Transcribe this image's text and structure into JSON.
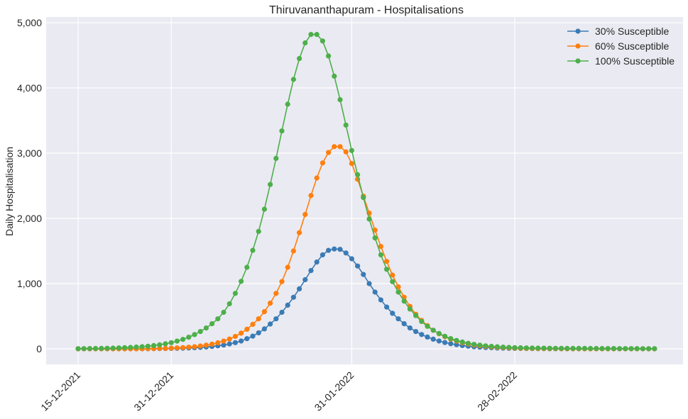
{
  "chart_data": {
    "type": "line",
    "title": "Thiruvananthapuram - Hospitalisations",
    "xlabel": "",
    "ylabel": "Daily Hospitalisation",
    "x_start": "15-12-2021",
    "x_end": "24-03-2022",
    "x_step_days": 1,
    "xticks": [
      "15-12-2021",
      "31-12-2021",
      "31-01-2022",
      "28-02-2022"
    ],
    "ylim": [
      -250,
      5000
    ],
    "yticks": [
      "0",
      "1,000",
      "2,000",
      "3,000",
      "4,000",
      "5,000"
    ],
    "ytick_values": [
      0,
      1000,
      2000,
      3000,
      4000,
      5000
    ],
    "grid": true,
    "legend_position": "top-right",
    "series": [
      {
        "name": "30% Susceptible",
        "color": "#3a7bb5",
        "values": [
          0,
          0,
          0,
          0,
          0,
          0,
          0,
          0,
          0,
          0,
          0,
          0,
          1,
          2,
          3,
          4,
          6,
          8,
          10,
          13,
          17,
          22,
          28,
          36,
          46,
          58,
          75,
          95,
          120,
          155,
          195,
          245,
          305,
          380,
          460,
          560,
          670,
          790,
          920,
          1060,
          1200,
          1330,
          1440,
          1510,
          1530,
          1525,
          1470,
          1380,
          1270,
          1140,
          1000,
          870,
          750,
          640,
          545,
          460,
          385,
          320,
          265,
          220,
          180,
          148,
          120,
          97,
          78,
          63,
          50,
          40,
          32,
          25,
          20,
          16,
          12,
          10,
          8,
          6,
          5,
          4,
          3,
          2,
          2,
          1,
          1,
          1,
          1,
          0,
          0,
          0,
          0,
          0,
          0,
          0,
          0,
          0,
          0,
          0,
          0,
          0,
          0,
          0
        ]
      },
      {
        "name": "60% Susceptible",
        "color": "#ff7f0e",
        "values": [
          0,
          0,
          0,
          0,
          0,
          0,
          0,
          0,
          0,
          0,
          0,
          0,
          2,
          3,
          5,
          7,
          10,
          14,
          19,
          25,
          33,
          43,
          56,
          72,
          92,
          118,
          150,
          190,
          240,
          300,
          375,
          460,
          570,
          700,
          850,
          1030,
          1250,
          1500,
          1780,
          2060,
          2350,
          2620,
          2850,
          3010,
          3100,
          3100,
          3020,
          2840,
          2600,
          2340,
          2080,
          1820,
          1570,
          1340,
          1130,
          950,
          790,
          650,
          530,
          435,
          355,
          285,
          230,
          185,
          148,
          118,
          94,
          75,
          59,
          47,
          37,
          29,
          23,
          18,
          14,
          11,
          9,
          7,
          5,
          4,
          3,
          3,
          2,
          2,
          1,
          1,
          1,
          1,
          0,
          0,
          0,
          0,
          0,
          0,
          0,
          0,
          0,
          0,
          0,
          0
        ]
      },
      {
        "name": "100% Susceptible",
        "color": "#4daf4a",
        "values": [
          2,
          3,
          4,
          5,
          7,
          9,
          11,
          14,
          18,
          22,
          27,
          33,
          40,
          50,
          62,
          77,
          95,
          118,
          145,
          178,
          218,
          265,
          320,
          385,
          460,
          560,
          690,
          850,
          1035,
          1250,
          1510,
          1800,
          2140,
          2520,
          2920,
          3340,
          3750,
          4130,
          4450,
          4690,
          4820,
          4820,
          4720,
          4490,
          4180,
          3820,
          3430,
          3040,
          2670,
          2320,
          1990,
          1700,
          1440,
          1220,
          1030,
          870,
          730,
          610,
          510,
          420,
          345,
          285,
          235,
          192,
          157,
          128,
          104,
          85,
          69,
          56,
          46,
          38,
          31,
          26,
          22,
          19,
          16,
          14,
          12,
          11,
          10,
          9,
          8,
          8,
          7,
          7,
          6,
          6,
          5,
          5,
          4,
          4,
          4,
          3,
          3,
          3,
          3,
          2,
          2,
          2
        ]
      }
    ]
  }
}
